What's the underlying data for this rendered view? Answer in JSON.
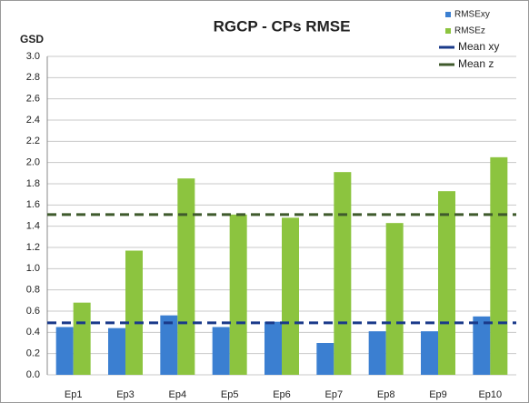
{
  "chart_data": {
    "type": "bar",
    "title": "RGCP - CPs RMSE",
    "y_label": "GSD",
    "categories": [
      "Ep1",
      "Ep3",
      "Ep4",
      "Ep5",
      "Ep6",
      "Ep7",
      "Ep8",
      "Ep9",
      "Ep10"
    ],
    "series": [
      {
        "name": "RMSExy",
        "color": "#3b7fd1",
        "values": [
          0.45,
          0.44,
          0.56,
          0.45,
          0.5,
          0.3,
          0.41,
          0.41,
          0.55
        ]
      },
      {
        "name": "RMSEz",
        "color": "#8cc43f",
        "values": [
          0.68,
          1.17,
          1.85,
          1.51,
          1.48,
          1.91,
          1.43,
          1.73,
          2.05
        ]
      }
    ],
    "reference_lines": [
      {
        "name": "Mean xy",
        "color": "#1a3a8a",
        "value": 0.49
      },
      {
        "name": "Mean z",
        "color": "#3f5a2c",
        "value": 1.51
      }
    ],
    "ylim": [
      0,
      3
    ],
    "yticks": [
      {
        "value": 0,
        "label": "0.0"
      },
      0.2,
      0.4,
      0.6,
      0.8,
      {
        "value": 1,
        "label": "1.0"
      },
      1.2,
      1.4,
      1.6,
      1.8,
      {
        "value": 2,
        "label": "2.0"
      },
      2.2,
      2.4,
      2.6,
      2.8,
      {
        "value": 3,
        "label": "3.0"
      }
    ],
    "grid": true,
    "legend": "top-right"
  }
}
